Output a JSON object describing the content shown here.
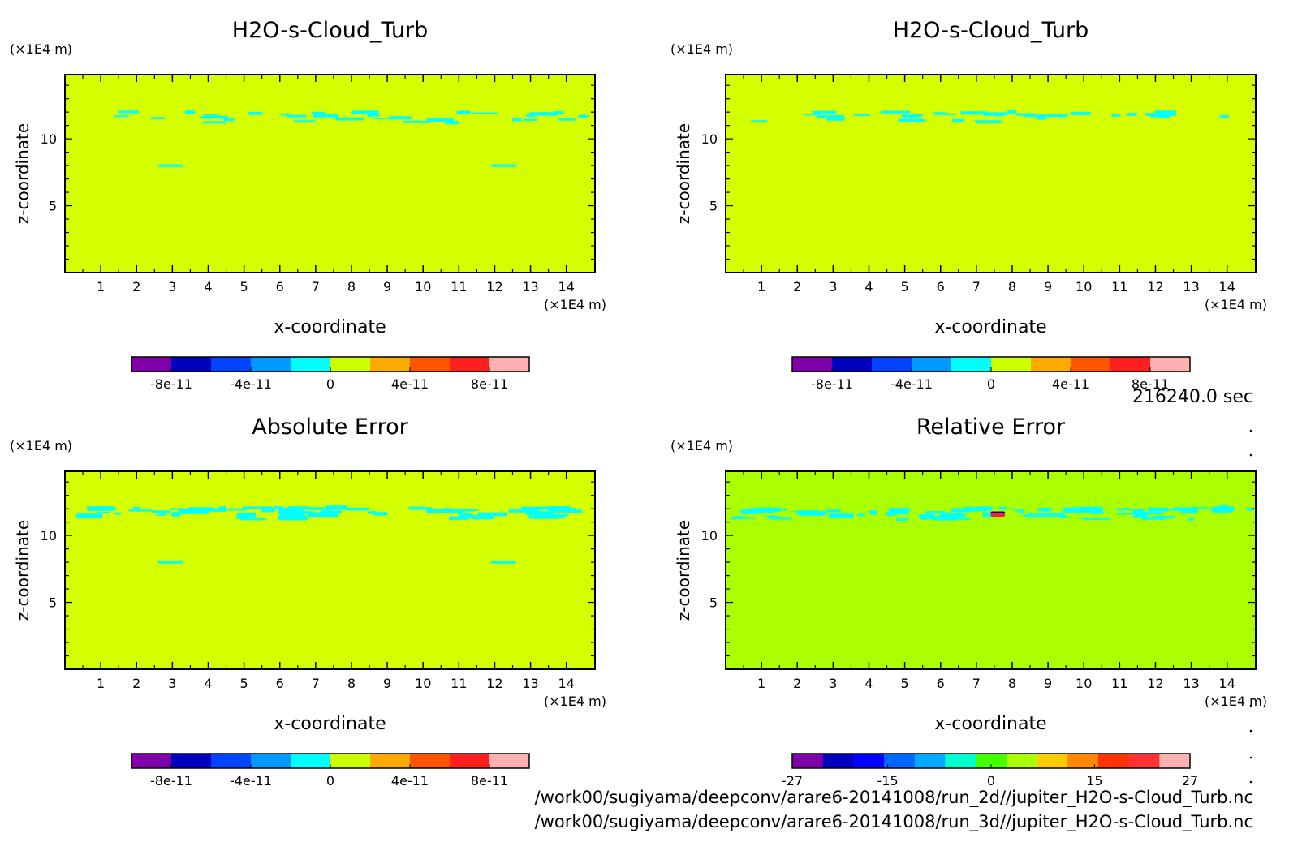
{
  "figure": {
    "time_label": "216240.0 sec",
    "file_paths": [
      "/work00/sugiyama/deepconv/arare6-20141008/run_2d//jupiter_H2O-s-Cloud_Turb.nc",
      "/work00/sugiyama/deepconv/arare6-20141008/run_3d//jupiter_H2O-s-Cloud_Turb.nc"
    ]
  },
  "chart_data": [
    {
      "type": "heatmap",
      "title": "H2O-s-Cloud_Turb",
      "xlabel": "x-coordinate",
      "ylabel": "z-coordinate",
      "x_unit": "(×1E4 m)",
      "y_unit": "(×1E4 m)",
      "xlim": [
        0,
        14.8
      ],
      "ylim": [
        0,
        14.8
      ],
      "x_ticks": [
        1,
        2,
        3,
        4,
        5,
        6,
        7,
        8,
        9,
        10,
        11,
        12,
        13,
        14
      ],
      "y_ticks": [
        5,
        10
      ],
      "background_color": "#d4ff00",
      "features": [
        {
          "x": [
            1.0,
            14.8
          ],
          "z": [
            11.3,
            12.5
          ],
          "color": "#00ffff",
          "kind": "thin patches"
        },
        {
          "x": [
            2.6,
            3.3
          ],
          "z": [
            7.9,
            8.1
          ],
          "color": "#00ffff",
          "kind": "patch"
        },
        {
          "x": [
            11.9,
            12.6
          ],
          "z": [
            7.9,
            8.1
          ],
          "color": "#00ffff",
          "kind": "patch"
        }
      ],
      "colorbar": {
        "colors": [
          "#7f00aa",
          "#0000bf",
          "#0044ff",
          "#0099ff",
          "#00ffff",
          "#ccff00",
          "#ffaa00",
          "#ff5500",
          "#ff1f1f",
          "#ffb0b0"
        ],
        "tick_labels": [
          "-8e-11",
          "-4e-11",
          "0",
          "4e-11",
          "8e-11"
        ]
      }
    },
    {
      "type": "heatmap",
      "title": "H2O-s-Cloud_Turb",
      "xlabel": "x-coordinate",
      "ylabel": "z-coordinate",
      "x_unit": "(×1E4 m)",
      "y_unit": "(×1E4 m)",
      "xlim": [
        0,
        14.8
      ],
      "ylim": [
        0,
        14.8
      ],
      "x_ticks": [
        1,
        2,
        3,
        4,
        5,
        6,
        7,
        8,
        9,
        10,
        11,
        12,
        13,
        14
      ],
      "y_ticks": [
        5,
        10
      ],
      "background_color": "#d4ff00",
      "features": [
        {
          "x": [
            0.1,
            14.8
          ],
          "z": [
            11.3,
            12.5
          ],
          "color": "#00ffff",
          "kind": "thin patches"
        }
      ],
      "colorbar": {
        "colors": [
          "#7f00aa",
          "#0000bf",
          "#0044ff",
          "#0099ff",
          "#00ffff",
          "#ccff00",
          "#ffaa00",
          "#ff5500",
          "#ff1f1f",
          "#ffb0b0"
        ],
        "tick_labels": [
          "-8e-11",
          "-4e-11",
          "0",
          "4e-11",
          "8e-11"
        ]
      }
    },
    {
      "type": "heatmap",
      "title": "Absolute Error",
      "xlabel": "x-coordinate",
      "ylabel": "z-coordinate",
      "x_unit": "(×1E4 m)",
      "y_unit": "(×1E4 m)",
      "xlim": [
        0,
        14.8
      ],
      "ylim": [
        0,
        14.8
      ],
      "x_ticks": [
        1,
        2,
        3,
        4,
        5,
        6,
        7,
        8,
        9,
        10,
        11,
        12,
        13,
        14
      ],
      "y_ticks": [
        5,
        10
      ],
      "background_color": "#d4ff00",
      "features": [
        {
          "x": [
            0.1,
            14.8
          ],
          "z": [
            11.3,
            12.6
          ],
          "color": "#00ffff",
          "kind": "dense patches"
        },
        {
          "x": [
            2.6,
            3.3
          ],
          "z": [
            7.9,
            8.1
          ],
          "color": "#00ffff",
          "kind": "patch"
        },
        {
          "x": [
            11.9,
            12.6
          ],
          "z": [
            7.9,
            8.1
          ],
          "color": "#00ffff",
          "kind": "patch"
        }
      ],
      "colorbar": {
        "colors": [
          "#7f00aa",
          "#0000bf",
          "#0044ff",
          "#0099ff",
          "#00ffff",
          "#ccff00",
          "#ffaa00",
          "#ff5500",
          "#ff1f1f",
          "#ffb0b0"
        ],
        "tick_labels": [
          "-8e-11",
          "-4e-11",
          "0",
          "4e-11",
          "8e-11"
        ]
      }
    },
    {
      "type": "heatmap",
      "title": "Relative Error",
      "xlabel": "x-coordinate",
      "ylabel": "z-coordinate",
      "x_unit": "(×1E4 m)",
      "y_unit": "(×1E4 m)",
      "xlim": [
        0,
        14.8
      ],
      "ylim": [
        0,
        14.8
      ],
      "x_ticks": [
        1,
        2,
        3,
        4,
        5,
        6,
        7,
        8,
        9,
        10,
        11,
        12,
        13,
        14
      ],
      "y_ticks": [
        5,
        10
      ],
      "background_color": "#aaff00",
      "features": [
        {
          "x": [
            0.1,
            14.8
          ],
          "z": [
            11.3,
            12.6
          ],
          "color": "#00ffff",
          "kind": "dense patches"
        },
        {
          "x": [
            7.4,
            7.8
          ],
          "z": [
            11.4,
            11.7
          ],
          "color": "#ff1f1f",
          "kind": "spot"
        },
        {
          "x": [
            7.4,
            7.8
          ],
          "z": [
            11.7,
            11.8
          ],
          "color": "#0000bf",
          "kind": "spot"
        }
      ],
      "colorbar": {
        "colors": [
          "#7f00aa",
          "#0000bf",
          "#0000ff",
          "#0066ff",
          "#00aaff",
          "#00ffcc",
          "#44ff00",
          "#aaff00",
          "#ffcc00",
          "#ff8800",
          "#ff3300",
          "#ff3333",
          "#ffb0b0"
        ],
        "tick_labels": [
          "-27",
          "-15",
          "0",
          "15",
          "27"
        ]
      }
    }
  ]
}
